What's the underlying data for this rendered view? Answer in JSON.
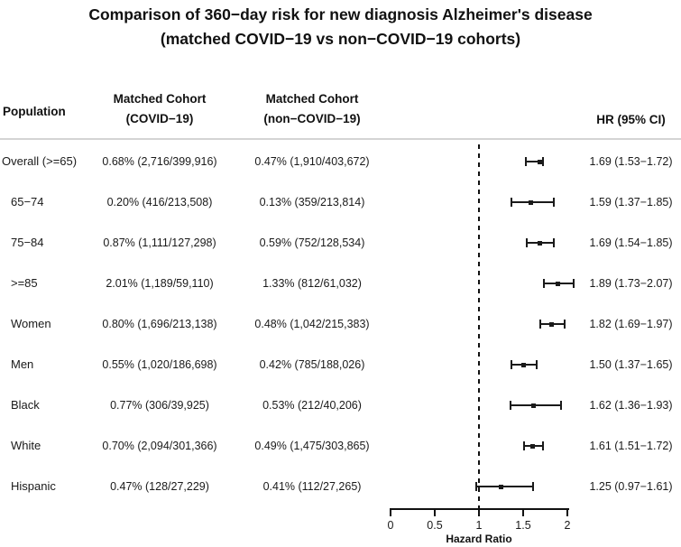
{
  "chart_data": {
    "type": "forest",
    "title_line1": "Comparison of 360−day risk for new diagnosis Alzheimer's disease",
    "title_line2": "(matched COVID−19 vs non−COVID−19 cohorts)",
    "columns": {
      "population": "Population",
      "covid_line1": "Matched Cohort",
      "covid_line2": "(COVID−19)",
      "noncovid_line1": "Matched Cohort",
      "noncovid_line2": "(non−COVID−19)",
      "hr_ci": "HR (95% CI)"
    },
    "xlabel": "Hazard Ratio",
    "xlim": [
      0,
      2
    ],
    "x_ticks": [
      0,
      0.5,
      1,
      1.5,
      2
    ],
    "x_tick_labels": [
      "0",
      "0.5",
      "1",
      "1.5",
      "2"
    ],
    "reference_line": 1,
    "rows": [
      {
        "population": "Overall (>=65)",
        "indent": false,
        "covid_risk": "0.68% (2,716/399,916)",
        "noncovid_risk": "0.47% (1,910/403,672)",
        "hr": 1.69,
        "ci_low": 1.53,
        "ci_high": 1.72,
        "hr_ci_label": "1.69 (1.53−1.72)"
      },
      {
        "population": "65−74",
        "indent": true,
        "covid_risk": "0.20% (416/213,508)",
        "noncovid_risk": "0.13% (359/213,814)",
        "hr": 1.59,
        "ci_low": 1.37,
        "ci_high": 1.85,
        "hr_ci_label": "1.59 (1.37−1.85)"
      },
      {
        "population": "75−84",
        "indent": true,
        "covid_risk": "0.87% (1,111/127,298)",
        "noncovid_risk": "0.59% (752/128,534)",
        "hr": 1.69,
        "ci_low": 1.54,
        "ci_high": 1.85,
        "hr_ci_label": "1.69 (1.54−1.85)"
      },
      {
        "population": ">=85",
        "indent": true,
        "covid_risk": "2.01% (1,189/59,110)",
        "noncovid_risk": "1.33% (812/61,032)",
        "hr": 1.89,
        "ci_low": 1.73,
        "ci_high": 2.07,
        "hr_ci_label": "1.89 (1.73−2.07)"
      },
      {
        "population": "Women",
        "indent": true,
        "covid_risk": "0.80% (1,696/213,138)",
        "noncovid_risk": "0.48% (1,042/215,383)",
        "hr": 1.82,
        "ci_low": 1.69,
        "ci_high": 1.97,
        "hr_ci_label": "1.82 (1.69−1.97)"
      },
      {
        "population": "Men",
        "indent": true,
        "covid_risk": "0.55% (1,020/186,698)",
        "noncovid_risk": "0.42% (785/188,026)",
        "hr": 1.5,
        "ci_low": 1.37,
        "ci_high": 1.65,
        "hr_ci_label": "1.50 (1.37−1.65)"
      },
      {
        "population": "Black",
        "indent": true,
        "covid_risk": "0.77% (306/39,925)",
        "noncovid_risk": "0.53% (212/40,206)",
        "hr": 1.62,
        "ci_low": 1.36,
        "ci_high": 1.93,
        "hr_ci_label": "1.62 (1.36−1.93)"
      },
      {
        "population": "White",
        "indent": true,
        "covid_risk": "0.70% (2,094/301,366)",
        "noncovid_risk": "0.49% (1,475/303,865)",
        "hr": 1.61,
        "ci_low": 1.51,
        "ci_high": 1.72,
        "hr_ci_label": "1.61 (1.51−1.72)"
      },
      {
        "population": "Hispanic",
        "indent": true,
        "covid_risk": "0.47% (128/27,229)",
        "noncovid_risk": "0.41% (112/27,265)",
        "hr": 1.25,
        "ci_low": 0.97,
        "ci_high": 1.61,
        "hr_ci_label": "1.25 (0.97−1.61)"
      }
    ]
  }
}
